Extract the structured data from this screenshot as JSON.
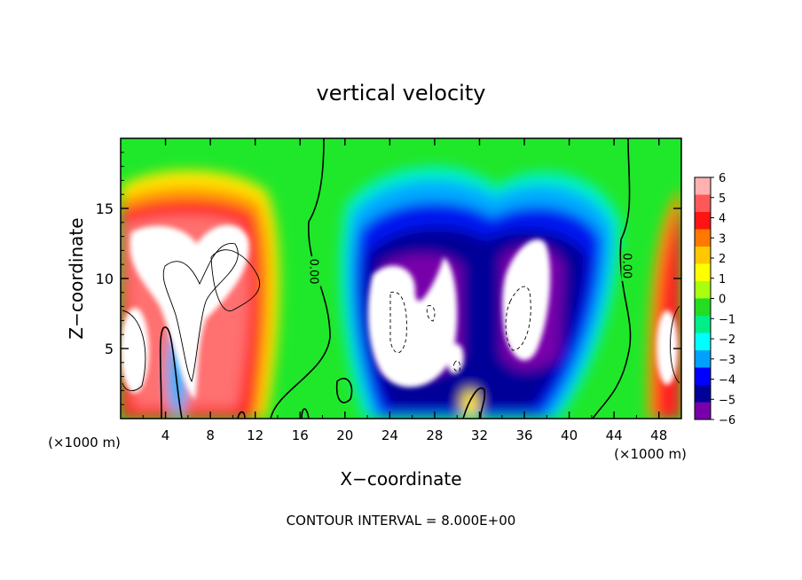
{
  "chart_data": {
    "type": "heatmap",
    "title": "vertical velocity",
    "xlabel": "X−coordinate",
    "ylabel": "Z−coordinate",
    "x_unit_left": "(×1000 m)",
    "x_unit_right": "(×1000 m)",
    "footer": "CONTOUR INTERVAL = 8.000E+00",
    "xlim": [
      0,
      50
    ],
    "ylim": [
      0,
      20
    ],
    "x_ticks": [
      "4",
      "8",
      "12",
      "16",
      "20",
      "24",
      "28",
      "32",
      "36",
      "40",
      "44",
      "48"
    ],
    "y_ticks": [
      "5",
      "10",
      "15"
    ],
    "contour_labels": [
      {
        "text": "0.00",
        "x": 17.3,
        "y": 10.5
      },
      {
        "text": "0.00",
        "x": 45.2,
        "y": 10.9
      }
    ],
    "colorbar": {
      "levels": [
        "6",
        "5",
        "4",
        "3",
        "2",
        "1",
        "0",
        "−1",
        "−2",
        "−3",
        "−4",
        "−5",
        "−6"
      ],
      "colors": [
        "#ffb0b0",
        "#ff5858",
        "#ff1414",
        "#ff7800",
        "#ffc800",
        "#ffff00",
        "#a8ff10",
        "#22dd22",
        "#00ee88",
        "#00ffff",
        "#00a0ff",
        "#0000ff",
        "#000098",
        "#7800aa"
      ]
    }
  }
}
